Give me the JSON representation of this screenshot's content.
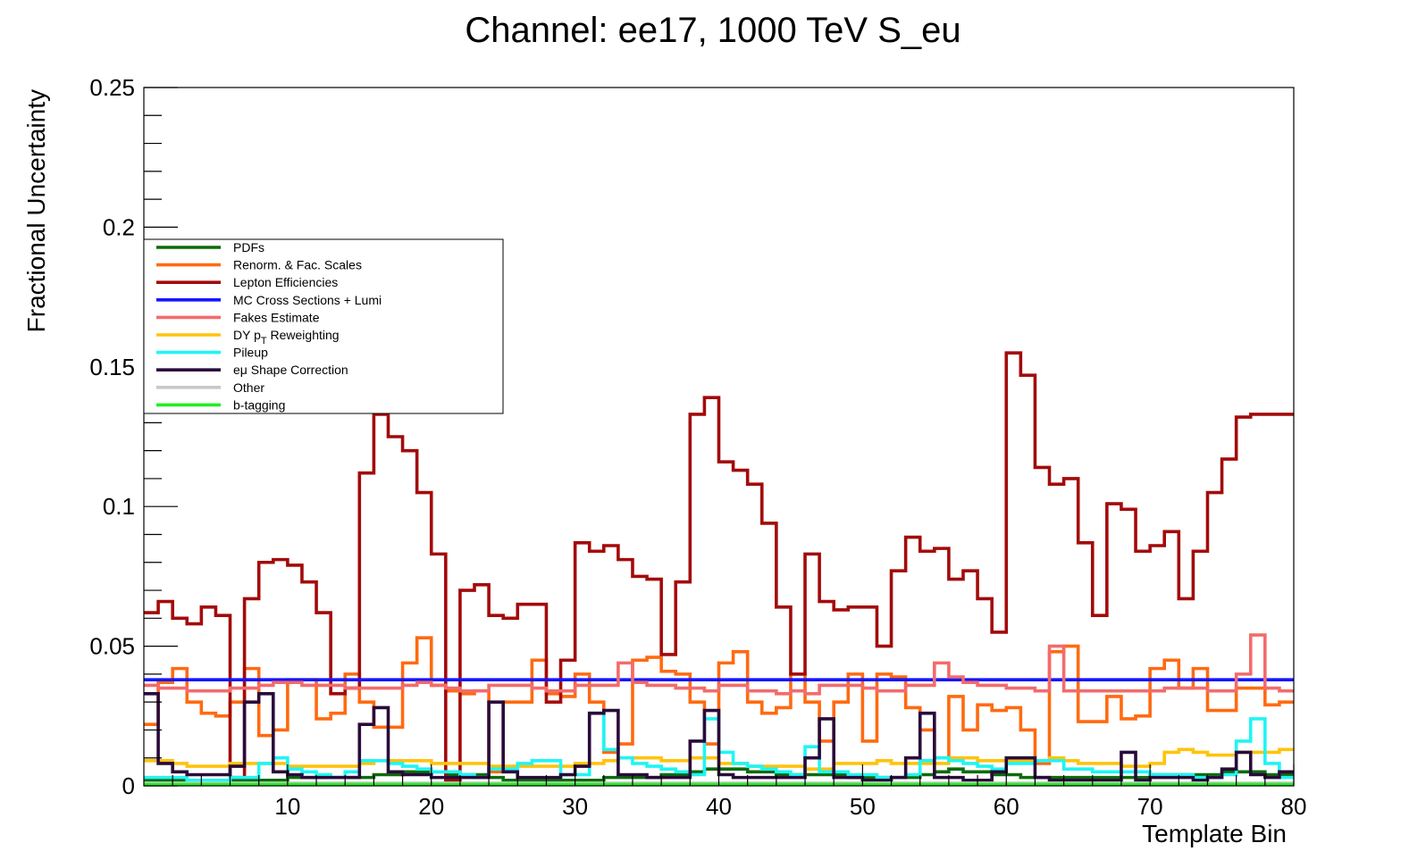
{
  "chart_data": {
    "type": "line",
    "title": "Channel: ee17, 1000 TeV S_eu",
    "xlabel": "Template Bin",
    "ylabel": "Fractional Uncertainty",
    "xlim": [
      0,
      80
    ],
    "ylim": [
      0,
      0.25
    ],
    "x_ticks": [
      10,
      20,
      30,
      40,
      50,
      60,
      70,
      80
    ],
    "y_ticks": [
      0,
      0.05,
      0.1,
      0.15,
      0.2,
      0.25
    ],
    "y_tick_labels": [
      "0",
      "0.05",
      "0.1",
      "0.15",
      "0.2",
      "0.25"
    ],
    "step": true,
    "grid": false,
    "legend_position": "upper-left",
    "series": [
      {
        "name": "PDFs",
        "color": "#0b6b0b",
        "values": [
          0.002,
          0.002,
          0.002,
          0.002,
          0.002,
          0.002,
          0.002,
          0.002,
          0.002,
          0.002,
          0.003,
          0.003,
          0.003,
          0.003,
          0.003,
          0.003,
          0.004,
          0.004,
          0.005,
          0.005,
          0.005,
          0.004,
          0.004,
          0.004,
          0.003,
          0.002,
          0.002,
          0.002,
          0.002,
          0.002,
          0.002,
          0.002,
          0.003,
          0.003,
          0.003,
          0.003,
          0.004,
          0.004,
          0.005,
          0.006,
          0.006,
          0.006,
          0.005,
          0.005,
          0.004,
          0.004,
          0.004,
          0.004,
          0.004,
          0.003,
          0.003,
          0.003,
          0.003,
          0.003,
          0.004,
          0.005,
          0.006,
          0.005,
          0.005,
          0.004,
          0.004,
          0.003,
          0.003,
          0.003,
          0.003,
          0.003,
          0.003,
          0.003,
          0.003,
          0.003,
          0.004,
          0.004,
          0.004,
          0.004,
          0.004,
          0.005,
          0.005,
          0.005,
          0.004,
          0.004
        ]
      },
      {
        "name": "Renorm. & Fac. Scales",
        "color": "#ff6a10",
        "values": [
          0.022,
          0.037,
          0.042,
          0.03,
          0.026,
          0.025,
          0.03,
          0.042,
          0.018,
          0.02,
          0.038,
          0.038,
          0.024,
          0.026,
          0.04,
          0.03,
          0.021,
          0.021,
          0.044,
          0.053,
          0.036,
          0.034,
          0.033,
          0.034,
          0.005,
          0.03,
          0.03,
          0.045,
          0.033,
          0.032,
          0.04,
          0.03,
          0.012,
          0.015,
          0.045,
          0.046,
          0.041,
          0.04,
          0.03,
          0.015,
          0.044,
          0.048,
          0.03,
          0.026,
          0.028,
          0.04,
          0.03,
          0.016,
          0.03,
          0.04,
          0.016,
          0.04,
          0.039,
          0.028,
          0.02,
          0.01,
          0.032,
          0.02,
          0.029,
          0.027,
          0.028,
          0.02,
          0.008,
          0.048,
          0.05,
          0.023,
          0.023,
          0.032,
          0.024,
          0.025,
          0.042,
          0.045,
          0.035,
          0.042,
          0.027,
          0.027,
          0.035,
          0.035,
          0.029,
          0.03
        ]
      },
      {
        "name": "Lepton Efficiencies",
        "color": "#a30a0a",
        "values": [
          0.062,
          0.066,
          0.06,
          0.058,
          0.064,
          0.061,
          0.003,
          0.067,
          0.08,
          0.081,
          0.079,
          0.073,
          0.062,
          0.033,
          0.035,
          0.112,
          0.133,
          0.125,
          0.12,
          0.105,
          0.083,
          0.002,
          0.07,
          0.072,
          0.061,
          0.06,
          0.065,
          0.065,
          0.03,
          0.045,
          0.087,
          0.084,
          0.086,
          0.081,
          0.075,
          0.074,
          0.047,
          0.073,
          0.133,
          0.139,
          0.116,
          0.113,
          0.108,
          0.094,
          0.064,
          0.04,
          0.083,
          0.066,
          0.063,
          0.064,
          0.064,
          0.05,
          0.077,
          0.089,
          0.084,
          0.085,
          0.074,
          0.077,
          0.067,
          0.055,
          0.155,
          0.147,
          0.114,
          0.108,
          0.11,
          0.087,
          0.061,
          0.101,
          0.099,
          0.084,
          0.086,
          0.091,
          0.067,
          0.084,
          0.105,
          0.117,
          0.132,
          0.133,
          0.133,
          0.133
        ]
      },
      {
        "name": "MC Cross Sections + Lumi",
        "color": "#1515ff",
        "values": [
          0.038,
          0.038,
          0.038,
          0.038,
          0.038,
          0.038,
          0.038,
          0.038,
          0.038,
          0.038,
          0.038,
          0.038,
          0.038,
          0.038,
          0.038,
          0.038,
          0.038,
          0.038,
          0.038,
          0.038,
          0.038,
          0.038,
          0.038,
          0.038,
          0.038,
          0.038,
          0.038,
          0.038,
          0.038,
          0.038,
          0.038,
          0.038,
          0.038,
          0.038,
          0.038,
          0.038,
          0.038,
          0.038,
          0.038,
          0.038,
          0.038,
          0.038,
          0.038,
          0.038,
          0.038,
          0.038,
          0.038,
          0.038,
          0.038,
          0.038,
          0.038,
          0.038,
          0.038,
          0.038,
          0.038,
          0.038,
          0.038,
          0.038,
          0.038,
          0.038,
          0.038,
          0.038,
          0.038,
          0.038,
          0.038,
          0.038,
          0.038,
          0.038,
          0.038,
          0.038,
          0.038,
          0.038,
          0.038,
          0.038,
          0.038,
          0.038,
          0.038,
          0.038,
          0.038,
          0.038
        ]
      },
      {
        "name": "Fakes Estimate",
        "color": "#f36b6b",
        "values": [
          0.036,
          0.035,
          0.035,
          0.034,
          0.034,
          0.034,
          0.035,
          0.035,
          0.036,
          0.037,
          0.037,
          0.036,
          0.036,
          0.036,
          0.035,
          0.035,
          0.035,
          0.035,
          0.036,
          0.037,
          0.036,
          0.035,
          0.034,
          0.034,
          0.036,
          0.036,
          0.036,
          0.035,
          0.034,
          0.034,
          0.036,
          0.036,
          0.036,
          0.044,
          0.037,
          0.036,
          0.036,
          0.035,
          0.035,
          0.034,
          0.036,
          0.036,
          0.034,
          0.034,
          0.033,
          0.034,
          0.033,
          0.036,
          0.036,
          0.036,
          0.035,
          0.034,
          0.034,
          0.036,
          0.036,
          0.044,
          0.039,
          0.037,
          0.036,
          0.036,
          0.035,
          0.035,
          0.034,
          0.05,
          0.034,
          0.034,
          0.034,
          0.034,
          0.034,
          0.034,
          0.034,
          0.035,
          0.035,
          0.035,
          0.034,
          0.034,
          0.04,
          0.054,
          0.035,
          0.034
        ]
      },
      {
        "name": "DY pT Reweighting",
        "color": "#ffc30a",
        "values": [
          0.009,
          0.009,
          0.008,
          0.007,
          0.007,
          0.007,
          0.008,
          0.008,
          0.008,
          0.008,
          0.007,
          0.007,
          0.007,
          0.007,
          0.007,
          0.008,
          0.009,
          0.009,
          0.009,
          0.009,
          0.008,
          0.008,
          0.008,
          0.008,
          0.007,
          0.007,
          0.007,
          0.007,
          0.007,
          0.007,
          0.008,
          0.008,
          0.009,
          0.01,
          0.01,
          0.01,
          0.009,
          0.009,
          0.01,
          0.01,
          0.008,
          0.008,
          0.007,
          0.007,
          0.007,
          0.007,
          0.006,
          0.006,
          0.008,
          0.008,
          0.008,
          0.009,
          0.008,
          0.008,
          0.008,
          0.008,
          0.01,
          0.01,
          0.009,
          0.009,
          0.009,
          0.009,
          0.009,
          0.01,
          0.009,
          0.008,
          0.008,
          0.008,
          0.007,
          0.007,
          0.008,
          0.012,
          0.013,
          0.012,
          0.011,
          0.011,
          0.012,
          0.012,
          0.012,
          0.013
        ]
      },
      {
        "name": "Pileup",
        "color": "#1ff5f5",
        "values": [
          0.003,
          0.003,
          0.003,
          0.002,
          0.002,
          0.002,
          0.003,
          0.003,
          0.008,
          0.01,
          0.006,
          0.005,
          0.004,
          0.003,
          0.005,
          0.009,
          0.009,
          0.008,
          0.007,
          0.006,
          0.005,
          0.005,
          0.004,
          0.003,
          0.006,
          0.006,
          0.008,
          0.009,
          0.009,
          0.004,
          0.004,
          0.026,
          0.013,
          0.01,
          0.008,
          0.007,
          0.006,
          0.005,
          0.004,
          0.024,
          0.012,
          0.008,
          0.007,
          0.006,
          0.005,
          0.004,
          0.014,
          0.005,
          0.005,
          0.004,
          0.004,
          0.003,
          0.003,
          0.004,
          0.009,
          0.01,
          0.009,
          0.008,
          0.007,
          0.006,
          0.008,
          0.008,
          0.009,
          0.009,
          0.006,
          0.006,
          0.005,
          0.005,
          0.005,
          0.005,
          0.004,
          0.004,
          0.004,
          0.003,
          0.003,
          0.004,
          0.016,
          0.024,
          0.008,
          0.003
        ]
      },
      {
        "name": "eμ Shape Correction",
        "color": "#2a0a3a",
        "values": [
          0.033,
          0.008,
          0.005,
          0.004,
          0.004,
          0.004,
          0.007,
          0.03,
          0.033,
          0.005,
          0.004,
          0.003,
          0.003,
          0.003,
          0.003,
          0.022,
          0.028,
          0.005,
          0.004,
          0.004,
          0.003,
          0.003,
          0.003,
          0.003,
          0.03,
          0.005,
          0.003,
          0.003,
          0.003,
          0.004,
          0.007,
          0.026,
          0.027,
          0.004,
          0.004,
          0.003,
          0.003,
          0.003,
          0.016,
          0.027,
          0.004,
          0.003,
          0.003,
          0.003,
          0.003,
          0.003,
          0.01,
          0.024,
          0.003,
          0.003,
          0.002,
          0.002,
          0.003,
          0.01,
          0.026,
          0.003,
          0.003,
          0.002,
          0.002,
          0.005,
          0.01,
          0.01,
          0.003,
          0.002,
          0.002,
          0.002,
          0.002,
          0.002,
          0.012,
          0.002,
          0.003,
          0.003,
          0.003,
          0.002,
          0.003,
          0.006,
          0.012,
          0.004,
          0.003,
          0.005
        ]
      },
      {
        "name": "Other",
        "color": "#c8c8c8",
        "values": [
          0.001,
          0.001,
          0.001,
          0.001,
          0.001,
          0.001,
          0.001,
          0.001,
          0.001,
          0.001,
          0.001,
          0.001,
          0.001,
          0.001,
          0.001,
          0.001,
          0.001,
          0.001,
          0.001,
          0.001,
          0.001,
          0.001,
          0.001,
          0.001,
          0.001,
          0.001,
          0.001,
          0.001,
          0.001,
          0.001,
          0.001,
          0.001,
          0.001,
          0.001,
          0.001,
          0.001,
          0.001,
          0.001,
          0.001,
          0.001,
          0.001,
          0.001,
          0.001,
          0.001,
          0.001,
          0.001,
          0.001,
          0.001,
          0.001,
          0.001,
          0.001,
          0.001,
          0.001,
          0.001,
          0.001,
          0.001,
          0.001,
          0.001,
          0.001,
          0.001,
          0.001,
          0.001,
          0.001,
          0.001,
          0.001,
          0.001,
          0.001,
          0.001,
          0.001,
          0.001,
          0.001,
          0.001,
          0.001,
          0.001,
          0.001,
          0.001,
          0.001,
          0.001,
          0.001,
          0.001
        ]
      },
      {
        "name": "b-tagging",
        "color": "#22ee22",
        "values": [
          0.0005,
          0.0005,
          0.0005,
          0.0005,
          0.0005,
          0.0005,
          0.0005,
          0.0005,
          0.0005,
          0.0005,
          0.0005,
          0.0005,
          0.0005,
          0.0005,
          0.0005,
          0.0005,
          0.0005,
          0.0005,
          0.0005,
          0.0005,
          0.0005,
          0.0005,
          0.0005,
          0.0005,
          0.0005,
          0.0005,
          0.0005,
          0.0005,
          0.0005,
          0.0005,
          0.0005,
          0.0005,
          0.0005,
          0.0005,
          0.0005,
          0.0005,
          0.0005,
          0.0005,
          0.0005,
          0.0005,
          0.0005,
          0.0005,
          0.0005,
          0.0005,
          0.0005,
          0.0005,
          0.0005,
          0.0005,
          0.0005,
          0.0005,
          0.0005,
          0.0005,
          0.0005,
          0.0005,
          0.0005,
          0.0005,
          0.0005,
          0.0005,
          0.0005,
          0.0005,
          0.0005,
          0.0005,
          0.0005,
          0.0005,
          0.0005,
          0.0005,
          0.0005,
          0.0005,
          0.0005,
          0.0005,
          0.0005,
          0.0005,
          0.0005,
          0.0005,
          0.0005,
          0.0005,
          0.0005,
          0.0005,
          0.0005,
          0.0005
        ]
      }
    ]
  }
}
